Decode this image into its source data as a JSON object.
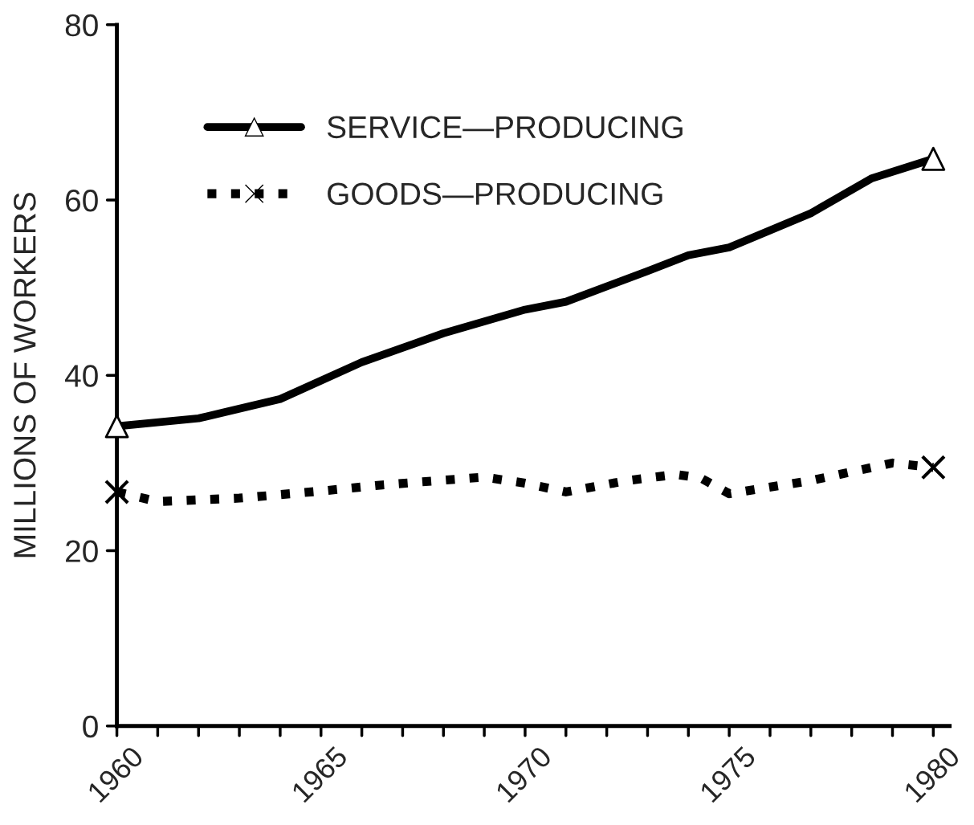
{
  "chart_data": {
    "type": "line",
    "ylabel": "MILLIONS OF WORKERS",
    "xlim": [
      1960,
      1980.4
    ],
    "ylim": [
      0,
      80
    ],
    "xticks": [
      1960,
      {
        "value": 1961,
        "label": null
      },
      {
        "value": 1962,
        "label": null
      },
      {
        "value": 1963,
        "label": null
      },
      {
        "value": 1964,
        "label": null
      },
      1965,
      {
        "value": 1966,
        "label": null
      },
      {
        "value": 1967,
        "label": null
      },
      {
        "value": 1968,
        "label": null
      },
      {
        "value": 1969,
        "label": null
      },
      1970,
      {
        "value": 1971,
        "label": null
      },
      {
        "value": 1972,
        "label": null
      },
      {
        "value": 1973,
        "label": null
      },
      {
        "value": 1974,
        "label": null
      },
      1975,
      {
        "value": 1976,
        "label": null
      },
      {
        "value": 1977,
        "label": null
      },
      {
        "value": 1978,
        "label": null
      },
      {
        "value": 1979,
        "label": null
      },
      1980
    ],
    "yticks": [
      0,
      20,
      40,
      60,
      80
    ],
    "grid": false,
    "legend": "top left",
    "series": [
      {
        "name": "SERVICE—PRODUCING",
        "color": "#000000",
        "line_style": "solid",
        "x": [
          1960,
          1962,
          1964,
          1966,
          1968,
          1970,
          1971,
          1973,
          1974,
          1975,
          1977,
          1978.5,
          1980
        ],
        "values": [
          34.2,
          35.1,
          37.3,
          41.5,
          44.8,
          47.5,
          48.4,
          51.9,
          53.7,
          54.6,
          58.5,
          62.5,
          64.7
        ]
      },
      {
        "name": "GOODS—PRODUCING",
        "color": "#000000",
        "line_style": "dotted",
        "x": [
          1960,
          1961,
          1963,
          1965,
          1966.5,
          1969,
          1970,
          1971,
          1972.5,
          1973.7,
          1974.3,
          1975,
          1977,
          1979,
          1980
        ],
        "values": [
          26.7,
          25.6,
          26,
          26.8,
          27.5,
          28.4,
          27.7,
          26.7,
          28,
          28.7,
          28.3,
          26.5,
          28,
          30,
          29.5
        ]
      },
      {
        "type": "scatter",
        "color": "#000000",
        "marker": "triangle",
        "x": [
          1960,
          1980
        ],
        "values": [
          34.2,
          64.7
        ]
      },
      {
        "type": "scatter",
        "color": "#000000",
        "marker": "cross",
        "x": [
          1960,
          1980
        ],
        "values": [
          26.7,
          29.5
        ]
      }
    ]
  }
}
